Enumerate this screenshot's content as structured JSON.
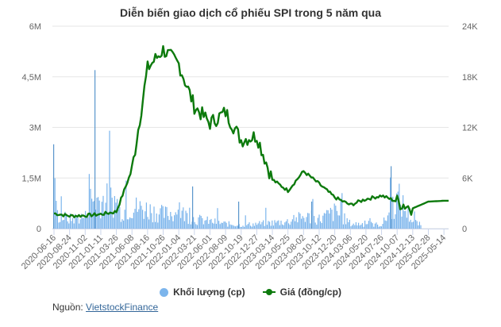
{
  "title": "Diễn biến giao dịch cổ phiếu SPI trong 5 năm qua",
  "legend": {
    "volume_label": "Khối lượng (cp)",
    "price_label": "Giá (đồng/cp)"
  },
  "source": {
    "prefix": "Nguồn:",
    "link_text": "VietstockFinance"
  },
  "colors": {
    "volume": "#7cb5ec",
    "price": "#0d7a0d",
    "grid": "#e6e6e6",
    "text": "#666666"
  },
  "chart_data": {
    "type": "line+bar",
    "title": "Diễn biến giao dịch cổ phiếu SPI trong 5 năm qua",
    "left_axis": {
      "label": "Khối lượng (cp)",
      "ticks": [
        "0",
        "1,5M",
        "3M",
        "4,5M",
        "6M"
      ],
      "range": [
        0,
        6000000
      ]
    },
    "right_axis": {
      "label": "Giá (đồng/cp)",
      "ticks": [
        "0",
        "6K",
        "12K",
        "18K",
        "24K"
      ],
      "range": [
        0,
        24000
      ]
    },
    "x_tick_labels": [
      "2020-06-16",
      "2020-08-24",
      "2020-11-02",
      "2021-01-11",
      "2021-03-26",
      "2021-06-08",
      "2021-08-16",
      "2021-10-26",
      "2022-01-04",
      "2022-03-21",
      "2022-06-01",
      "2022-08-09",
      "2022-10-19",
      "2022-12-27",
      "2023-03-14",
      "2023-05-25",
      "2023-08-02",
      "2023-10-12",
      "2023-12-20",
      "2024-03-06",
      "2024-05-20",
      "2024-07-26",
      "2024-10-07",
      "2024-12-13",
      "2025-02-28",
      "2025-05-14"
    ],
    "grid": true,
    "legend_position": "bottom",
    "series": [
      {
        "name": "Giá (đồng/cp)",
        "type": "line",
        "note": "approximate values at each x tick label",
        "values": [
          1800,
          1500,
          1550,
          1700,
          2000,
          7000,
          19000,
          21200,
          19500,
          14500,
          12500,
          13800,
          10500,
          11000,
          5800,
          4500,
          6800,
          5300,
          3700,
          2800,
          3500,
          3900,
          3200,
          2400,
          3200,
          3300
        ]
      },
      {
        "name": "Khối lượng (cp)",
        "type": "bar",
        "note": "approximate representative volumes near each x tick label; notable spikes ~2.5M (2020-06) and ~4.7M (2021-01)",
        "values": [
          600000,
          400000,
          500000,
          4700000,
          700000,
          900000,
          800000,
          600000,
          700000,
          400000,
          300000,
          200000,
          150000,
          200000,
          250000,
          300000,
          500000,
          400000,
          700000,
          200000,
          200000,
          150000,
          1300000,
          300000,
          0,
          0
        ]
      }
    ]
  }
}
